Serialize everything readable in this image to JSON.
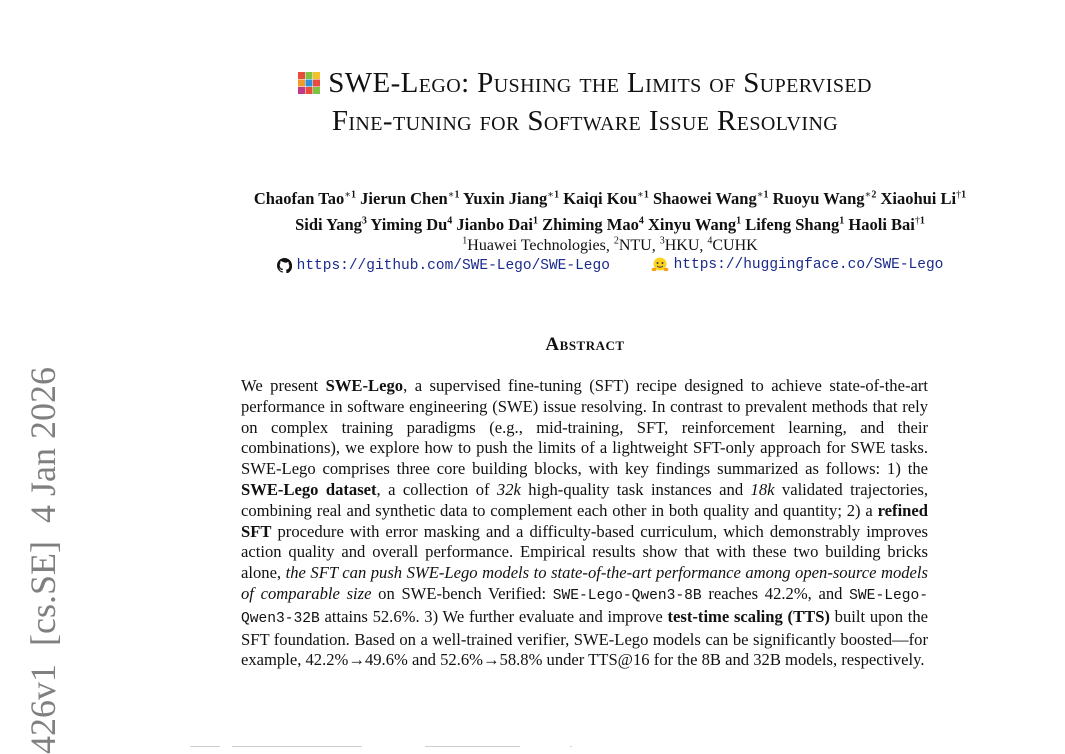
{
  "paper": {
    "title_line1": "SWE-Lego: Pushing the Limits of Supervised",
    "title_line2": "Fine-tuning for Software Issue Resolving",
    "logo_icon": "lego-brick-icon",
    "authors_line1": [
      {
        "name": "Chaofan Tao",
        "mark": "∗",
        "aff": "1"
      },
      {
        "name": "Jierun Chen",
        "mark": "∗",
        "aff": "1"
      },
      {
        "name": "Yuxin Jiang",
        "mark": "∗",
        "aff": "1"
      },
      {
        "name": "Kaiqi Kou",
        "mark": "∗",
        "aff": "1"
      },
      {
        "name": "Shaowei Wang",
        "mark": "∗",
        "aff": "1"
      },
      {
        "name": "Ruoyu Wang",
        "mark": "∗",
        "aff": "2"
      },
      {
        "name": "Xiaohui Li",
        "mark": "†",
        "aff": "1"
      }
    ],
    "authors_line2": [
      {
        "name": "Sidi Yang",
        "mark": "",
        "aff": "3"
      },
      {
        "name": "Yiming Du",
        "mark": "",
        "aff": "4"
      },
      {
        "name": "Jianbo Dai",
        "mark": "",
        "aff": "1"
      },
      {
        "name": "Zhiming Mao",
        "mark": "",
        "aff": "4"
      },
      {
        "name": "Xinyu Wang",
        "mark": "",
        "aff": "1"
      },
      {
        "name": "Lifeng Shang",
        "mark": "",
        "aff": "1"
      },
      {
        "name": "Haoli Bai",
        "mark": "†",
        "aff": "1"
      }
    ],
    "affiliations": [
      {
        "num": "1",
        "name": "Huawei Technologies"
      },
      {
        "num": "2",
        "name": "NTU"
      },
      {
        "num": "3",
        "name": "HKU"
      },
      {
        "num": "4",
        "name": "CUHK"
      }
    ],
    "links": {
      "github": "https://github.com/SWE-Lego/SWE-Lego",
      "github_icon": "github-icon",
      "huggingface": "https://huggingface.co/SWE-Lego",
      "huggingface_icon": "huggingface-icon"
    },
    "abstract_heading": "Abstract",
    "abstract_segments": [
      {
        "t": "We present "
      },
      {
        "t": "SWE-Lego",
        "s": "b"
      },
      {
        "t": ", a supervised fine-tuning (SFT) recipe designed to achieve state-of-the-art performance in software engineering (SWE) issue resolving. In contrast to prevalent methods that rely on complex training paradigms (e.g., mid-training, SFT, reinforcement learning, and their combinations), we explore how to push the limits of a lightweight SFT-only approach for SWE tasks. SWE-Lego comprises three core building blocks, with key findings summarized as follows: 1) the "
      },
      {
        "t": "SWE-Lego dataset",
        "s": "b"
      },
      {
        "t": ", a collection of "
      },
      {
        "t": "32k",
        "s": "i"
      },
      {
        "t": " high-quality task instances and "
      },
      {
        "t": "18k",
        "s": "i"
      },
      {
        "t": " validated trajectories, combining real and synthetic data to complement each other in both quality and quantity; 2) a "
      },
      {
        "t": "refined SFT",
        "s": "b"
      },
      {
        "t": " procedure with error masking and a difficulty-based curriculum, which demonstrably improves action quality and overall performance. Empirical results show that with these two building bricks alone, "
      },
      {
        "t": "the SFT can push SWE-Lego models to state-of-the-art performance among open-source models of comparable size",
        "s": "i"
      },
      {
        "t": " on SWE-bench Verified: "
      },
      {
        "t": "SWE-Lego-Qwen3-8B",
        "s": "m"
      },
      {
        "t": " reaches 42.2%, and "
      },
      {
        "t": "SWE-Lego-Qwen3-32B",
        "s": "m"
      },
      {
        "t": " attains 52.6%. 3) We further evaluate and improve "
      },
      {
        "t": "test-time scaling (TTS)",
        "s": "b"
      },
      {
        "t": " built upon the SFT foundation. Based on a well-trained verifier, SWE-Lego models can be significantly boosted—for example, 42.2%→49.6% and 52.6%→58.8% under TTS@16 for the 8B and 32B models, respectively."
      }
    ],
    "arxiv_stamp": "426v1  [cs.SE]  4 Jan 2026"
  }
}
